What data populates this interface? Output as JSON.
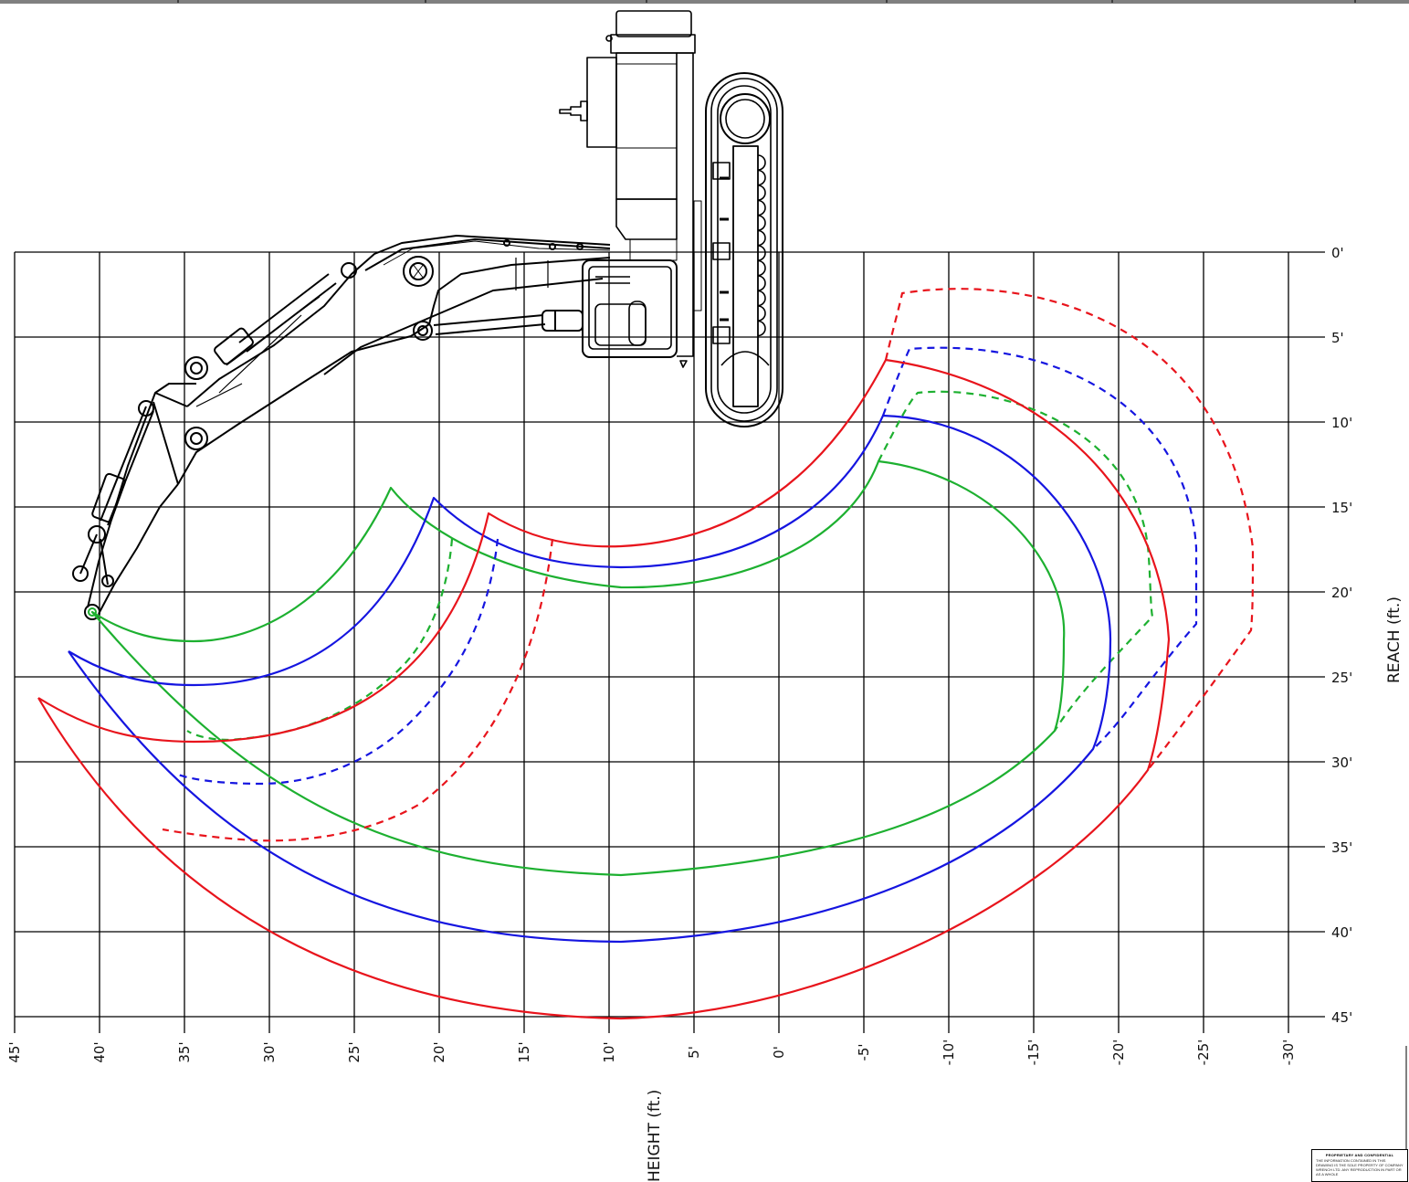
{
  "diagram": {
    "axes": {
      "x_title": "HEIGHT (ft.)",
      "y_title": "REACH (ft.)",
      "x_ticks": [
        "45'",
        "40'",
        "35'",
        "30'",
        "25'",
        "20'",
        "15'",
        "10'",
        "5'",
        "0'",
        "-5'",
        "-10'",
        "-15'",
        "-20'",
        "-25'",
        "-30'"
      ],
      "y_ticks": [
        "0'",
        "5'",
        "10'",
        "15'",
        "20'",
        "25'",
        "30'",
        "35'",
        "40'",
        "45'"
      ]
    },
    "colors": {
      "grid": "#000000",
      "machine": "#000000",
      "red": "#e8141c",
      "blue": "#1515e0",
      "green": "#1db030"
    },
    "envelopes": [
      {
        "color": "green",
        "style": "solid"
      },
      {
        "color": "green",
        "style": "dashed"
      },
      {
        "color": "blue",
        "style": "solid"
      },
      {
        "color": "blue",
        "style": "dashed"
      },
      {
        "color": "red",
        "style": "solid"
      },
      {
        "color": "red",
        "style": "dashed"
      }
    ],
    "machine_icon": "excavator-long-reach-plan-view"
  },
  "notice": {
    "heading": "PROPRIETARY AND CONFIDENTIAL",
    "text": "THE INFORMATION CONTAINED IN THIS DRAWING IS THE SOLE PROPERTY OF COMPANY WRENCH LTD. ANY REPRODUCTION IN PART OR AS A WHOLE"
  }
}
